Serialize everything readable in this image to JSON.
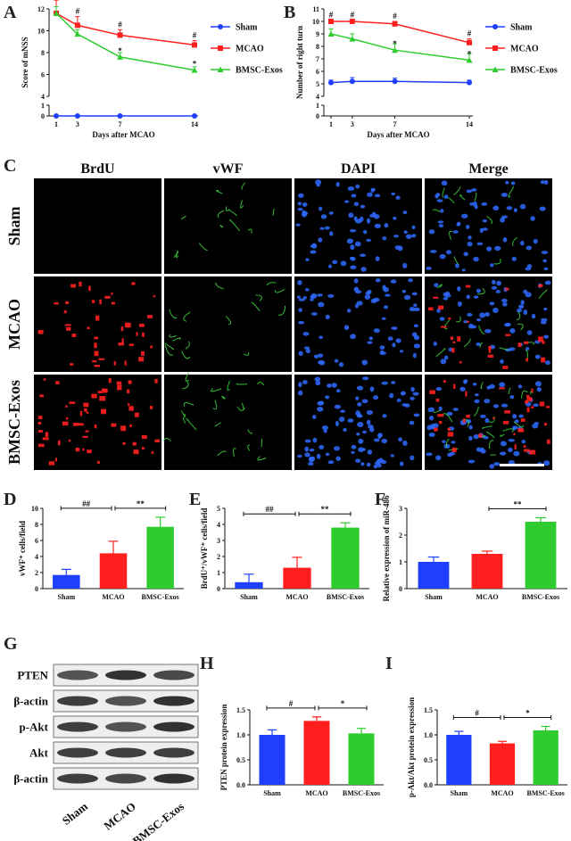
{
  "panel_labels": {
    "A": "A",
    "B": "B",
    "C": "C",
    "D": "D",
    "E": "E",
    "F": "F",
    "G": "G",
    "H": "H",
    "I": "I"
  },
  "colors": {
    "sham": "#1f3fff",
    "mcao": "#ff1f1f",
    "exos": "#2ecc2e",
    "text": "#111111"
  },
  "micrograph": {
    "columns": [
      "BrdU",
      "vWF",
      "DAPI",
      "Merge"
    ],
    "rows": [
      "Sham",
      "MCAO",
      "BMSC-Exos"
    ],
    "channel_colors": [
      "red",
      "green",
      "blue",
      "merge"
    ]
  },
  "blot": {
    "bands": [
      "PTEN",
      "β-actin",
      "p-Akt",
      "Akt",
      "β-actin"
    ],
    "lanes": [
      "Sham",
      "MCAO",
      "BMSC-Exos"
    ]
  },
  "chart_data": [
    {
      "panel": "A",
      "type": "line",
      "x": [
        1,
        3,
        7,
        14
      ],
      "xlabel": "Days after MCAO",
      "ylabel": "Score of mNSS",
      "xticks": [
        "1",
        "3",
        "7",
        "14"
      ],
      "yticks": [
        "0",
        "1",
        "4",
        "6",
        "8",
        "10",
        "12"
      ],
      "series": [
        {
          "name": "Sham",
          "values": [
            0,
            0,
            0,
            0
          ],
          "color": "#1f3fff",
          "marker": "circle",
          "marks": [
            "",
            "",
            "",
            ""
          ]
        },
        {
          "name": "MCAO",
          "values": [
            11.6,
            10.5,
            9.6,
            8.7
          ],
          "err": [
            1.2,
            0.8,
            0.5,
            0.4
          ],
          "color": "#ff1f1f",
          "marker": "square",
          "marks": [
            "#",
            "#",
            "#",
            "#"
          ]
        },
        {
          "name": "BMSC-Exos",
          "values": [
            11.6,
            9.7,
            7.6,
            6.4
          ],
          "err": [
            0.6,
            0.4,
            0.4,
            0.3
          ],
          "color": "#2ecc2e",
          "marker": "triangle",
          "marks": [
            "",
            "",
            "*",
            "*"
          ]
        }
      ],
      "legend": "right"
    },
    {
      "panel": "B",
      "type": "line",
      "x": [
        1,
        3,
        7,
        14
      ],
      "xlabel": "Days after MCAO",
      "ylabel": "Number of right turn",
      "xticks": [
        "1",
        "3",
        "7",
        "14"
      ],
      "yticks": [
        "0",
        "1",
        "4",
        "5",
        "6",
        "7",
        "8",
        "9",
        "10",
        "11"
      ],
      "series": [
        {
          "name": "Sham",
          "values": [
            5.1,
            5.2,
            5.2,
            5.1
          ],
          "err": [
            0.2,
            0.3,
            0.25,
            0.2
          ],
          "color": "#1f3fff",
          "marker": "circle",
          "marks": [
            "",
            "",
            "",
            ""
          ]
        },
        {
          "name": "MCAO",
          "values": [
            10.0,
            10.0,
            9.8,
            8.3
          ],
          "err": [
            0.1,
            0.1,
            0.2,
            0.3
          ],
          "color": "#ff1f1f",
          "marker": "square",
          "marks": [
            "#",
            "#",
            "#",
            "#"
          ]
        },
        {
          "name": "BMSC-Exos",
          "values": [
            9.0,
            8.6,
            7.7,
            6.9
          ],
          "err": [
            0.4,
            0.4,
            0.5,
            0.5
          ],
          "color": "#2ecc2e",
          "marker": "triangle",
          "marks": [
            "",
            "",
            "*",
            "*"
          ]
        }
      ],
      "legend": "right"
    },
    {
      "panel": "D",
      "type": "bar",
      "categories": [
        "Sham",
        "MCAO",
        "BMSC-Exos"
      ],
      "values": [
        1.7,
        4.4,
        7.7
      ],
      "err": [
        0.7,
        1.5,
        1.2
      ],
      "ylabel": "vWF⁺ cells/field",
      "ylim": [
        0,
        10
      ],
      "yticks": [
        "0",
        "2",
        "4",
        "6",
        "8",
        "10"
      ],
      "brackets": [
        {
          "from": 0,
          "to": 1,
          "label": "##"
        },
        {
          "from": 1,
          "to": 2,
          "label": "**"
        }
      ]
    },
    {
      "panel": "E",
      "type": "bar",
      "categories": [
        "Sham",
        "MCAO",
        "BMSC-Exos"
      ],
      "values": [
        0.4,
        1.3,
        3.8
      ],
      "err": [
        0.5,
        0.65,
        0.3
      ],
      "ylabel": "BrdU⁺/vWF⁺ cells/field",
      "ylim": [
        0,
        5
      ],
      "yticks": [
        "0",
        "1",
        "2",
        "3",
        "4",
        "5"
      ],
      "brackets": [
        {
          "from": 0,
          "to": 1,
          "label": "##"
        },
        {
          "from": 1,
          "to": 2,
          "label": "**"
        }
      ]
    },
    {
      "panel": "F",
      "type": "bar",
      "categories": [
        "Sham",
        "MCAO",
        "BMSC-Exos"
      ],
      "values": [
        1.0,
        1.3,
        2.5
      ],
      "err": [
        0.18,
        0.1,
        0.15
      ],
      "ylabel": "Relative expression of miR-486",
      "ylim": [
        0,
        3
      ],
      "yticks": [
        "0",
        "1",
        "2",
        "3"
      ],
      "brackets": [
        {
          "from": 1,
          "to": 2,
          "label": "**"
        }
      ]
    },
    {
      "panel": "H",
      "type": "bar",
      "categories": [
        "Sham",
        "MCAO",
        "BMSC-Exos"
      ],
      "values": [
        1.0,
        1.28,
        1.03
      ],
      "err": [
        0.1,
        0.08,
        0.1
      ],
      "ylabel": "PTEN protein expression",
      "ylim": [
        0,
        1.5
      ],
      "yticks": [
        "0.0",
        "0.5",
        "1.0",
        "1.5"
      ],
      "brackets": [
        {
          "from": 0,
          "to": 1,
          "label": "#"
        },
        {
          "from": 1,
          "to": 2,
          "label": "*"
        }
      ]
    },
    {
      "panel": "I",
      "type": "bar",
      "categories": [
        "Sham",
        "MCAO",
        "BMSC-Exos"
      ],
      "values": [
        1.0,
        0.83,
        1.09
      ],
      "err": [
        0.07,
        0.04,
        0.08
      ],
      "ylabel": "p-Akt/Akt protein expression",
      "ylim": [
        0,
        1.5
      ],
      "yticks": [
        "0.0",
        "0.5",
        "1.0",
        "1.5"
      ],
      "brackets": [
        {
          "from": 0,
          "to": 1,
          "label": "#"
        },
        {
          "from": 1,
          "to": 2,
          "label": "*"
        }
      ]
    }
  ]
}
